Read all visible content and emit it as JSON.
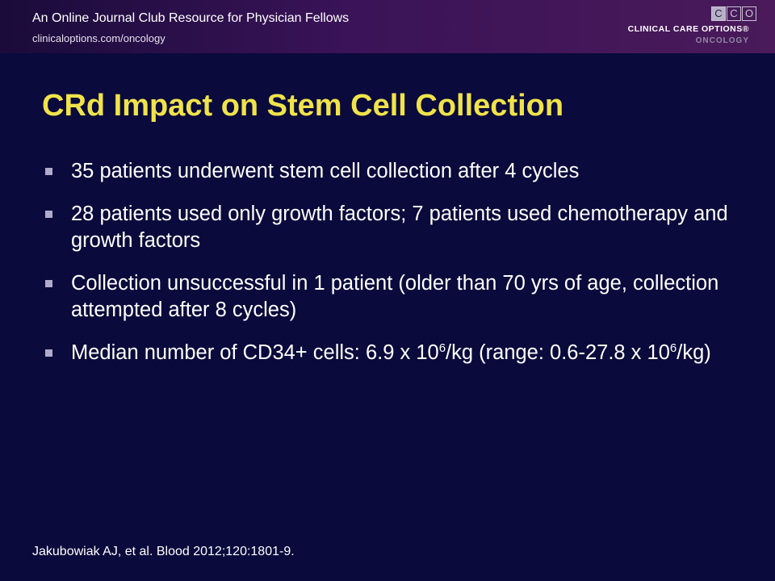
{
  "header": {
    "tagline": "An Online Journal Club Resource for Physician Fellows",
    "url": "clinicaloptions.com/oncology"
  },
  "logo": {
    "letters": [
      "C",
      "C",
      "O"
    ],
    "line1": "CLINICAL CARE OPTIONS®",
    "line2": "ONCOLOGY"
  },
  "slide": {
    "title": "CRd Impact on Stem Cell Collection",
    "bullets": [
      {
        "text": "35 patients underwent stem cell collection after 4 cycles"
      },
      {
        "text": "28 patients used only growth factors; 7 patients used chemotherapy and growth factors"
      },
      {
        "text": "Collection unsuccessful in 1 patient (older than 70 yrs of age, collection attempted after 8 cycles)"
      },
      {
        "p1": "Median number of CD34+ cells: 6.9 x 10",
        "sup1": "6",
        "p2": "/kg (range: 0.6-27.8 x 10",
        "sup2": "6",
        "p3": "/kg)"
      }
    ],
    "citation": "Jakubowiak AJ, et al. Blood 2012;120:1801-9."
  },
  "colors": {
    "background": "#0a0a3c",
    "title": "#f0e34a",
    "bullet_marker": "#b0aacb"
  }
}
